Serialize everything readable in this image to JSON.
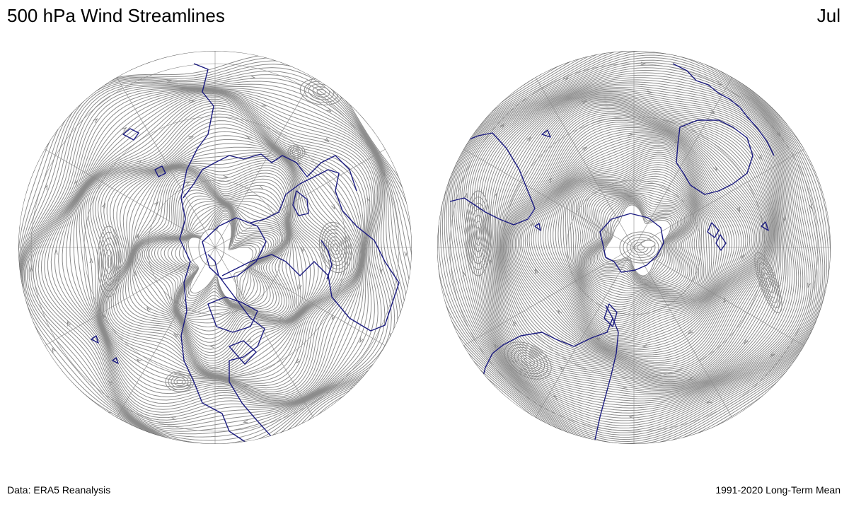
{
  "header": {
    "title": "500 hPa Wind Streamlines",
    "month": "Jul"
  },
  "footer": {
    "source": "Data: ERA5 Reanalysis",
    "period": "1991-2020 Long-Term Mean"
  },
  "colors": {
    "streamline": "#8c8c8c",
    "coastline": "#1a1a80",
    "graticule": "#8a8a8a",
    "background": "#ffffff"
  },
  "maps": [
    {
      "id": "north",
      "projection": "north-polar-orthographic"
    },
    {
      "id": "south",
      "projection": "south-polar-orthographic"
    }
  ]
}
